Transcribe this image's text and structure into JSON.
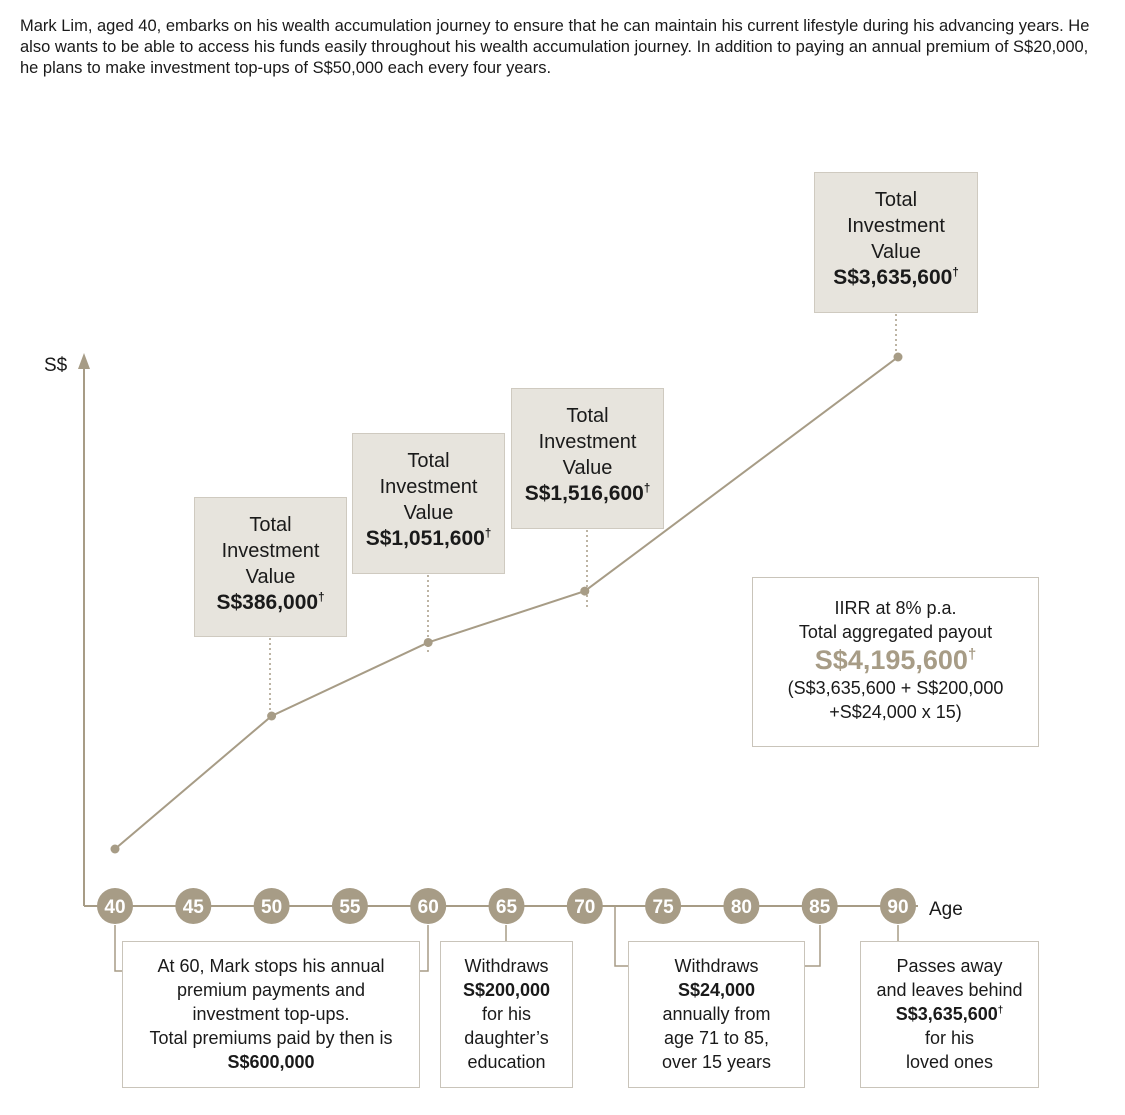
{
  "intro": "Mark Lim, aged 40, embarks on his wealth accumulation journey to ensure that he can maintain his current lifestyle during his advancing years. He also wants to be able to access his funds easily throughout his wealth accumulation journey. In addition to paying an annual premium of S$20,000, he plans to make investment top-ups of S$50,000 each every four years.",
  "colors": {
    "accent": "#a79c86",
    "box_fill": "#e7e4dd",
    "text": "#1a1a1a"
  },
  "chart_data": {
    "type": "line",
    "ylabel": "S$",
    "xlabel": "Age",
    "x_ticks": [
      "40",
      "45",
      "50",
      "55",
      "60",
      "65",
      "70",
      "75",
      "80",
      "85",
      "90"
    ],
    "points": [
      {
        "age": 40,
        "label": ""
      },
      {
        "age": 50,
        "value": 386000,
        "label": "S$386,000"
      },
      {
        "age": 60,
        "value": 1051600,
        "label": "S$1,051,600"
      },
      {
        "age": 70,
        "value": 1516600,
        "label": "S$1,516,600"
      },
      {
        "age": 90,
        "value": 3635600,
        "label": "S$3,635,600"
      }
    ],
    "value_box_title_lines": [
      "Total",
      "Investment",
      "Value"
    ],
    "dagger": "†",
    "payout_box": {
      "line1": "IIRR at 8% p.a.",
      "line2": "Total aggregated payout",
      "amount": "S$4,195,600",
      "breakdown1": "(S$3,635,600 + S$200,000",
      "breakdown2": "+S$24,000 x 15)"
    },
    "events": {
      "e60": {
        "l1": "At 60, Mark stops his annual",
        "l2": "premium payments and",
        "l3": "investment top-ups.",
        "l4": "Total premiums paid by then is",
        "l5": "S$600,000"
      },
      "e65": {
        "l1": "Withdraws",
        "l2": "S$200,000",
        "l3": "for his",
        "l4": "daughter’s",
        "l5": "education"
      },
      "e7185": {
        "l1": "Withdraws",
        "l2": "S$24,000",
        "l3": "annually from",
        "l4": "age 71 to 85,",
        "l5": "over 15 years"
      },
      "e90": {
        "l1": "Passes away",
        "l2": "and leaves behind",
        "l3": "S$3,635,600",
        "l4": "for his",
        "l5": "loved ones"
      }
    }
  }
}
